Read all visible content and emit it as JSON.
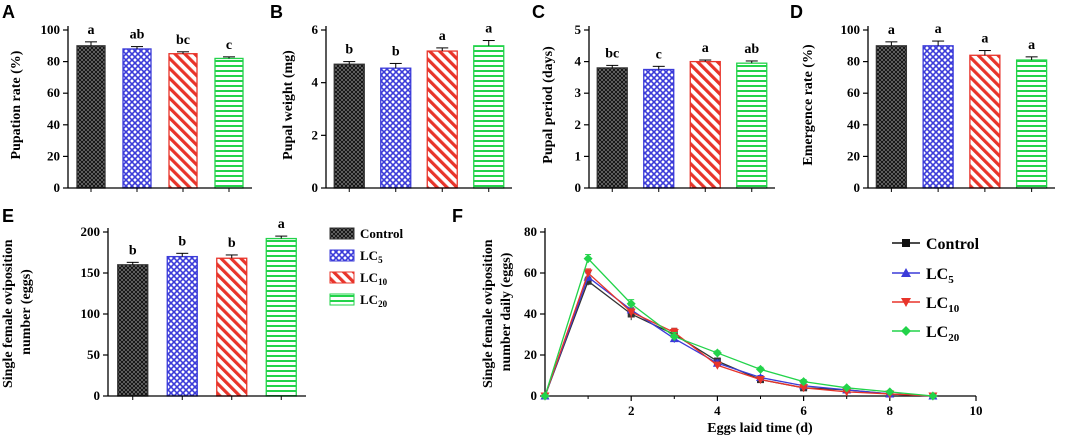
{
  "colors": {
    "control": "#333333",
    "lc5": "#3b3bd9",
    "lc10": "#e8342a",
    "lc20": "#22d34a",
    "axis": "#000000"
  },
  "legend": {
    "items": [
      {
        "key": "control",
        "label": "Control",
        "base": "Control",
        "sub": ""
      },
      {
        "key": "lc5",
        "label": "LC5",
        "base": "LC",
        "sub": "5"
      },
      {
        "key": "lc10",
        "label": "LC10",
        "base": "LC",
        "sub": "10"
      },
      {
        "key": "lc20",
        "label": "LC20",
        "base": "LC",
        "sub": "20"
      }
    ]
  },
  "chart_data": [
    {
      "panel": "A",
      "type": "bar",
      "ylabel": "Pupation rate (%)",
      "xlabel": "",
      "ylim": [
        0,
        100
      ],
      "yticks": [
        0,
        20,
        40,
        60,
        80,
        100
      ],
      "categories": [
        "Control",
        "LC5",
        "LC10",
        "LC20"
      ],
      "values": [
        90,
        88,
        85,
        82
      ],
      "errors": [
        2.5,
        1.5,
        1.2,
        1.0
      ],
      "letters": [
        "a",
        "ab",
        "bc",
        "c"
      ]
    },
    {
      "panel": "B",
      "type": "bar",
      "ylabel": "Pupal weight (mg)",
      "xlabel": "",
      "ylim": [
        0,
        6
      ],
      "yticks": [
        0,
        2,
        4,
        6
      ],
      "categories": [
        "Control",
        "LC5",
        "LC10",
        "LC20"
      ],
      "values": [
        4.7,
        4.55,
        5.2,
        5.4
      ],
      "errors": [
        0.1,
        0.18,
        0.12,
        0.2
      ],
      "letters": [
        "b",
        "b",
        "a",
        "a"
      ]
    },
    {
      "panel": "C",
      "type": "bar",
      "ylabel": "Pupal period (days)",
      "xlabel": "",
      "ylim": [
        0,
        5
      ],
      "yticks": [
        0,
        1,
        2,
        3,
        4,
        5
      ],
      "categories": [
        "Control",
        "LC5",
        "LC10",
        "LC20"
      ],
      "values": [
        3.8,
        3.75,
        4.0,
        3.95
      ],
      "errors": [
        0.08,
        0.1,
        0.05,
        0.07
      ],
      "letters": [
        "bc",
        "c",
        "a",
        "ab"
      ]
    },
    {
      "panel": "D",
      "type": "bar",
      "ylabel": "Emergence rate (%)",
      "xlabel": "",
      "ylim": [
        0,
        100
      ],
      "yticks": [
        0,
        20,
        40,
        60,
        80,
        100
      ],
      "categories": [
        "Control",
        "LC5",
        "LC10",
        "LC20"
      ],
      "values": [
        90,
        90,
        84,
        81
      ],
      "errors": [
        2.5,
        3.0,
        3.0,
        2.0
      ],
      "letters": [
        "a",
        "a",
        "a",
        "a"
      ]
    },
    {
      "panel": "E",
      "type": "bar",
      "ylabel": "Single female oviposition number (eggs)",
      "xlabel": "",
      "ylim": [
        0,
        200
      ],
      "yticks": [
        0,
        50,
        100,
        150,
        200
      ],
      "categories": [
        "Control",
        "LC5",
        "LC10",
        "LC20"
      ],
      "values": [
        160,
        170,
        168,
        192
      ],
      "errors": [
        3,
        4,
        4,
        3
      ],
      "letters": [
        "b",
        "b",
        "b",
        "a"
      ]
    },
    {
      "panel": "F",
      "type": "line",
      "ylabel": "Single female oviposition number daily (eggs)",
      "xlabel": "Eggs laid time (d)",
      "xlim": [
        0,
        10
      ],
      "xticks": [
        2,
        4,
        6,
        8,
        10
      ],
      "ylim": [
        0,
        80
      ],
      "yticks": [
        0,
        20,
        40,
        60,
        80
      ],
      "x": [
        0,
        1,
        2,
        3,
        4,
        5,
        6,
        7,
        8,
        9
      ],
      "series": [
        {
          "key": "control",
          "name": "Control",
          "marker": "square",
          "values": [
            0,
            56,
            40,
            30,
            17,
            8,
            4,
            3,
            1,
            0
          ],
          "errors": [
            0,
            2,
            3,
            3,
            1.5,
            1,
            1,
            0.5,
            0.5,
            0
          ]
        },
        {
          "key": "lc5",
          "name": "LC5",
          "marker": "triangle",
          "values": [
            0,
            58,
            42,
            28,
            16,
            9,
            5,
            3,
            1,
            0
          ],
          "errors": [
            0,
            2,
            3,
            2,
            1.5,
            1,
            1,
            0.5,
            0.5,
            0
          ]
        },
        {
          "key": "lc10",
          "name": "LC10",
          "marker": "triangle-down",
          "values": [
            0,
            60,
            41,
            31,
            15,
            8,
            4,
            2,
            1,
            0
          ],
          "errors": [
            0,
            2,
            3,
            2,
            1.5,
            1,
            1,
            0.5,
            0.5,
            0
          ]
        },
        {
          "key": "lc20",
          "name": "LC20",
          "marker": "diamond",
          "values": [
            0,
            67,
            45,
            29,
            21,
            13,
            7,
            4,
            2,
            0
          ],
          "errors": [
            0,
            2,
            2,
            2,
            1,
            1,
            1,
            0.5,
            0.5,
            0
          ]
        }
      ]
    }
  ]
}
